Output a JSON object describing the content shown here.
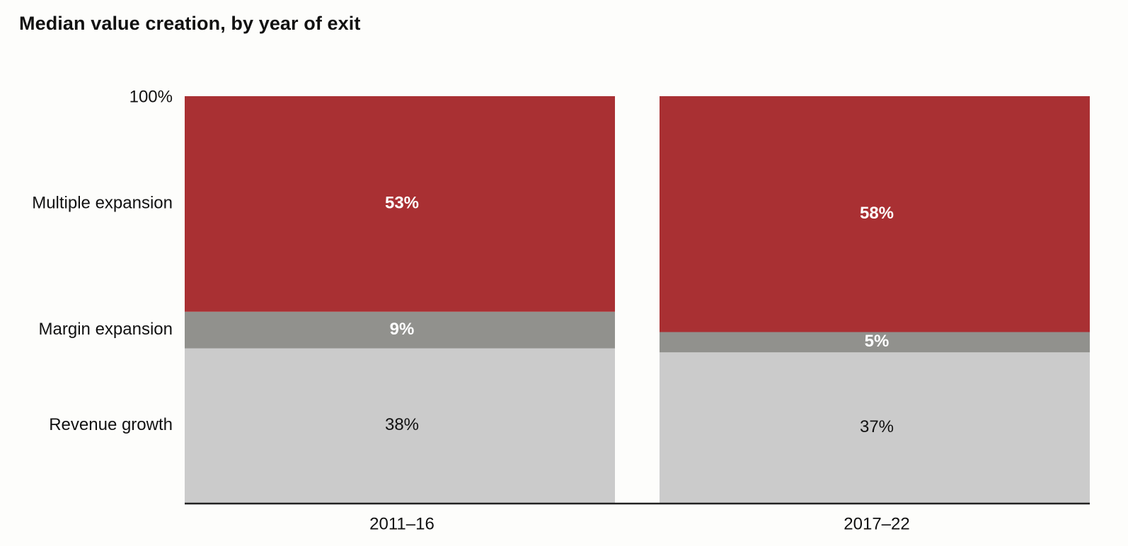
{
  "chart_data": {
    "type": "bar",
    "stacked": true,
    "title": "Median value creation, by year of exit",
    "categories": [
      "2011–16",
      "2017–22"
    ],
    "series": [
      {
        "name": "Revenue growth",
        "values": [
          38,
          37
        ],
        "color": "#cbcbcb",
        "label_color": "#111111"
      },
      {
        "name": "Margin expansion",
        "values": [
          9,
          5
        ],
        "color": "#91918d",
        "label_color": "#ffffff"
      },
      {
        "name": "Multiple expansion",
        "values": [
          53,
          58
        ],
        "color": "#a93033",
        "label_color": "#ffffff"
      }
    ],
    "value_labels": [
      [
        "38%",
        "37%"
      ],
      [
        "9%",
        "5%"
      ],
      [
        "53%",
        "58%"
      ]
    ],
    "y_tick_label": "100%",
    "ylim": [
      0,
      100
    ],
    "legend": "row labels at left",
    "grid": false
  }
}
